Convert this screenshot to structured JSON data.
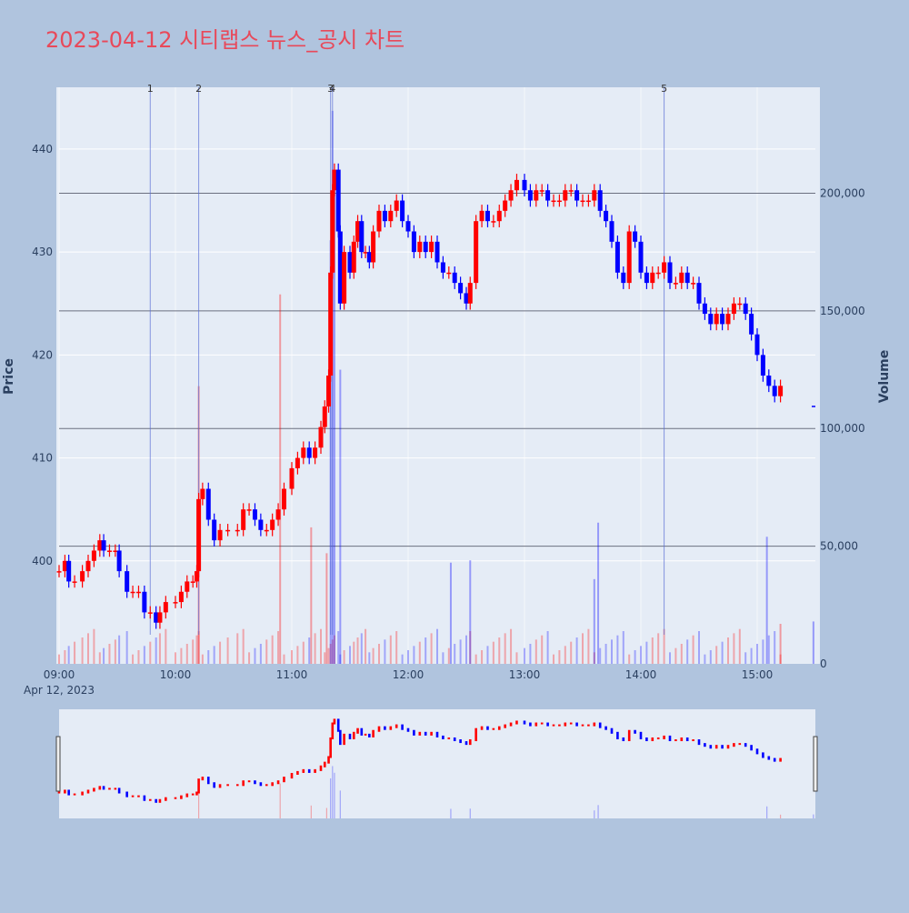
{
  "title": "2023-04-12 시티랩스 뉴스_공시 차트",
  "chart_data": {
    "type": "candlestick",
    "date_label": "Apr 12, 2023",
    "x_range": [
      "09:00",
      "15:30"
    ],
    "x_ticks": [
      "09:00",
      "10:00",
      "11:00",
      "12:00",
      "13:00",
      "14:00",
      "15:00"
    ],
    "yaxis_price": {
      "label": "Price",
      "range": [
        390,
        446
      ],
      "ticks": [
        400,
        410,
        420,
        430,
        440
      ]
    },
    "yaxis_volume": {
      "label": "Volume",
      "range": [
        0,
        245000
      ],
      "ticks": [
        0,
        50000,
        100000,
        150000,
        200000
      ],
      "tick_labels": [
        "0",
        "50,000",
        "100,000",
        "150,000",
        "200,000"
      ]
    },
    "up_color": "#ff0000",
    "down_color": "#0000ff",
    "news_markers": [
      {
        "label": "1",
        "time": "09:47"
      },
      {
        "label": "2",
        "time": "10:12"
      },
      {
        "label": "3",
        "time": "11:20"
      },
      {
        "label": "4",
        "time": "11:21"
      },
      {
        "label": "5",
        "time": "14:12"
      }
    ],
    "price_series": [
      [
        "09:00",
        399
      ],
      [
        "09:03",
        400
      ],
      [
        "09:05",
        398
      ],
      [
        "09:08",
        398
      ],
      [
        "09:12",
        399
      ],
      [
        "09:15",
        400
      ],
      [
        "09:18",
        401
      ],
      [
        "09:21",
        402
      ],
      [
        "09:23",
        401
      ],
      [
        "09:26",
        401
      ],
      [
        "09:29",
        401
      ],
      [
        "09:31",
        399
      ],
      [
        "09:35",
        397
      ],
      [
        "09:38",
        397
      ],
      [
        "09:41",
        397
      ],
      [
        "09:44",
        395
      ],
      [
        "09:47",
        395
      ],
      [
        "09:50",
        394
      ],
      [
        "09:52",
        395
      ],
      [
        "09:55",
        396
      ],
      [
        "10:00",
        396
      ],
      [
        "10:03",
        397
      ],
      [
        "10:06",
        398
      ],
      [
        "10:09",
        398
      ],
      [
        "10:11",
        399
      ],
      [
        "10:12",
        406
      ],
      [
        "10:14",
        407
      ],
      [
        "10:17",
        404
      ],
      [
        "10:20",
        402
      ],
      [
        "10:23",
        403
      ],
      [
        "10:27",
        403
      ],
      [
        "10:32",
        403
      ],
      [
        "10:35",
        405
      ],
      [
        "10:38",
        405
      ],
      [
        "10:41",
        404
      ],
      [
        "10:44",
        403
      ],
      [
        "10:47",
        403
      ],
      [
        "10:50",
        404
      ],
      [
        "10:53",
        405
      ],
      [
        "10:56",
        407
      ],
      [
        "11:00",
        409
      ],
      [
        "11:03",
        410
      ],
      [
        "11:06",
        411
      ],
      [
        "11:09",
        410
      ],
      [
        "11:12",
        411
      ],
      [
        "11:15",
        413
      ],
      [
        "11:17",
        415
      ],
      [
        "11:19",
        418
      ],
      [
        "11:20",
        428
      ],
      [
        "11:21",
        436
      ],
      [
        "11:22",
        438
      ],
      [
        "11:24",
        432
      ],
      [
        "11:25",
        425
      ],
      [
        "11:27",
        430
      ],
      [
        "11:30",
        428
      ],
      [
        "11:32",
        431
      ],
      [
        "11:34",
        433
      ],
      [
        "11:36",
        430
      ],
      [
        "11:38",
        430
      ],
      [
        "11:40",
        429
      ],
      [
        "11:42",
        432
      ],
      [
        "11:45",
        434
      ],
      [
        "11:48",
        433
      ],
      [
        "11:51",
        434
      ],
      [
        "11:54",
        435
      ],
      [
        "11:57",
        433
      ],
      [
        "12:00",
        432
      ],
      [
        "12:03",
        430
      ],
      [
        "12:06",
        431
      ],
      [
        "12:09",
        430
      ],
      [
        "12:12",
        431
      ],
      [
        "12:15",
        429
      ],
      [
        "12:18",
        428
      ],
      [
        "12:21",
        428
      ],
      [
        "12:24",
        427
      ],
      [
        "12:27",
        426
      ],
      [
        "12:30",
        425
      ],
      [
        "12:32",
        427
      ],
      [
        "12:35",
        433
      ],
      [
        "12:38",
        434
      ],
      [
        "12:41",
        433
      ],
      [
        "12:44",
        433
      ],
      [
        "12:47",
        434
      ],
      [
        "12:50",
        435
      ],
      [
        "12:53",
        436
      ],
      [
        "12:56",
        437
      ],
      [
        "13:00",
        436
      ],
      [
        "13:03",
        435
      ],
      [
        "13:06",
        436
      ],
      [
        "13:09",
        436
      ],
      [
        "13:12",
        435
      ],
      [
        "13:15",
        435
      ],
      [
        "13:18",
        435
      ],
      [
        "13:21",
        436
      ],
      [
        "13:24",
        436
      ],
      [
        "13:27",
        435
      ],
      [
        "13:30",
        435
      ],
      [
        "13:33",
        435
      ],
      [
        "13:36",
        436
      ],
      [
        "13:39",
        434
      ],
      [
        "13:42",
        433
      ],
      [
        "13:45",
        431
      ],
      [
        "13:48",
        428
      ],
      [
        "13:51",
        427
      ],
      [
        "13:54",
        432
      ],
      [
        "13:57",
        431
      ],
      [
        "14:00",
        428
      ],
      [
        "14:03",
        427
      ],
      [
        "14:06",
        428
      ],
      [
        "14:09",
        428
      ],
      [
        "14:12",
        429
      ],
      [
        "14:15",
        427
      ],
      [
        "14:18",
        427
      ],
      [
        "14:21",
        428
      ],
      [
        "14:24",
        427
      ],
      [
        "14:27",
        427
      ],
      [
        "14:30",
        425
      ],
      [
        "14:33",
        424
      ],
      [
        "14:36",
        423
      ],
      [
        "14:39",
        424
      ],
      [
        "14:42",
        423
      ],
      [
        "14:45",
        424
      ],
      [
        "14:48",
        425
      ],
      [
        "14:51",
        425
      ],
      [
        "14:54",
        424
      ],
      [
        "14:57",
        422
      ],
      [
        "15:00",
        420
      ],
      [
        "15:03",
        418
      ],
      [
        "15:06",
        417
      ],
      [
        "15:09",
        416
      ],
      [
        "15:12",
        417
      ]
    ],
    "last_price": {
      "time": "15:30",
      "value": 415
    },
    "volume_spikes": [
      {
        "time": "10:12",
        "value": 118000,
        "color": "#ff0000"
      },
      {
        "time": "10:54",
        "value": 157000,
        "color": "#ff0000"
      },
      {
        "time": "11:20",
        "value": 180000,
        "color": "#0000ff"
      },
      {
        "time": "11:21",
        "value": 235000,
        "color": "#0000ff"
      },
      {
        "time": "11:22",
        "value": 205000,
        "color": "#0000ff"
      },
      {
        "time": "11:25",
        "value": 125000,
        "color": "#0000ff"
      },
      {
        "time": "11:18",
        "value": 47000,
        "color": "#ff0000"
      },
      {
        "time": "11:10",
        "value": 58000,
        "color": "#ff0000"
      },
      {
        "time": "12:22",
        "value": 43000,
        "color": "#0000ff"
      },
      {
        "time": "12:32",
        "value": 44000,
        "color": "#0000ff"
      },
      {
        "time": "13:36",
        "value": 36000,
        "color": "#0000ff"
      },
      {
        "time": "13:38",
        "value": 60000,
        "color": "#0000ff"
      },
      {
        "time": "15:05",
        "value": 54000,
        "color": "#0000ff"
      },
      {
        "time": "15:12",
        "value": 17000,
        "color": "#ff0000"
      },
      {
        "time": "15:29",
        "value": 18000,
        "color": "#0000ff"
      }
    ]
  }
}
